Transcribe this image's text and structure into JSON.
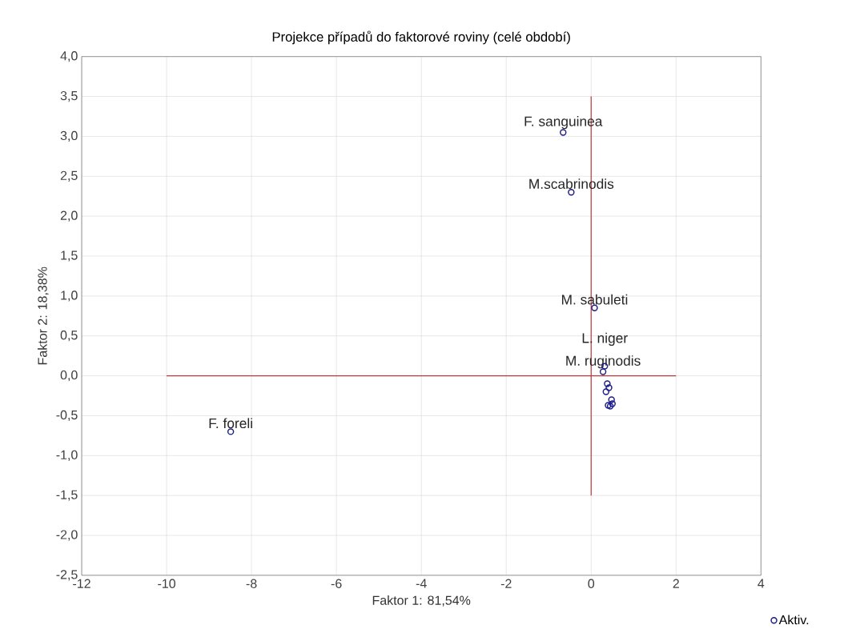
{
  "chart_data": {
    "type": "scatter",
    "title": "Projekce případů do faktorové roviny (celé období)",
    "xlabel": "Faktor 1: 81,54%",
    "ylabel": "Faktor 2: 18,38%",
    "series": [
      {
        "name": "Aktiv.",
        "color": "#1c1c8c",
        "x": [
          -0.66,
          -0.47,
          0.08,
          0.28,
          0.32,
          -8.49,
          0.35,
          0.4,
          0.45,
          0.5,
          0.48,
          0.42,
          0.38
        ],
        "values": [
          3.05,
          2.3,
          0.85,
          0.05,
          0.12,
          -0.7,
          -0.2,
          -0.37,
          -0.38,
          -0.35,
          -0.3,
          -0.15,
          -0.1
        ]
      },
      {
        "type": "line",
        "marker": "none",
        "color": "#c0393b",
        "x": [
          -10,
          2
        ],
        "values": [
          0,
          0
        ]
      },
      {
        "type": "line",
        "marker": "none",
        "color": "#c0393b",
        "x": [
          0,
          0
        ],
        "values": [
          -1.5,
          3.5
        ]
      }
    ],
    "annotations": [
      {
        "text": "F. sanguinea",
        "x": -0.66,
        "y": 3.05
      },
      {
        "text": "M.scabrinodis",
        "x": -0.47,
        "y": 2.3
      },
      {
        "text": "M. sabuleti",
        "x": 0.08,
        "y": 0.85
      },
      {
        "text": "M. ruginodis",
        "x": 0.28,
        "y": 0.05
      },
      {
        "text": "L. niger",
        "x": 0.32,
        "y": 0.12
      },
      {
        "text": "F. foreli",
        "x": -8.49,
        "y": -0.7
      }
    ],
    "xlim": [
      -12,
      4
    ],
    "ylim": [
      -2.5,
      4.0
    ],
    "xticks": [
      -12,
      -10,
      -8,
      -6,
      -4,
      -2,
      0,
      2,
      4
    ],
    "yticks": [
      {
        "value": -2.5,
        "label": "-2,5"
      },
      {
        "value": -2.0,
        "label": "-2,0"
      },
      {
        "value": -1.5,
        "label": "-1,5"
      },
      {
        "value": -1.0,
        "label": "-1,0"
      },
      {
        "value": -0.5,
        "label": "-0,5"
      },
      {
        "value": 0.0,
        "label": "0,0"
      },
      {
        "value": 0.5,
        "label": "0,5"
      },
      {
        "value": 1.0,
        "label": "1,0"
      },
      {
        "value": 1.5,
        "label": "1,5"
      },
      {
        "value": 2.0,
        "label": "2,0"
      },
      {
        "value": 2.5,
        "label": "2,5"
      },
      {
        "value": 3.0,
        "label": "3,0"
      },
      {
        "value": 3.5,
        "label": "3,5"
      },
      {
        "value": 4.0,
        "label": "4,0"
      }
    ],
    "grid": true,
    "legend": "bottom right",
    "marker": "circle"
  }
}
